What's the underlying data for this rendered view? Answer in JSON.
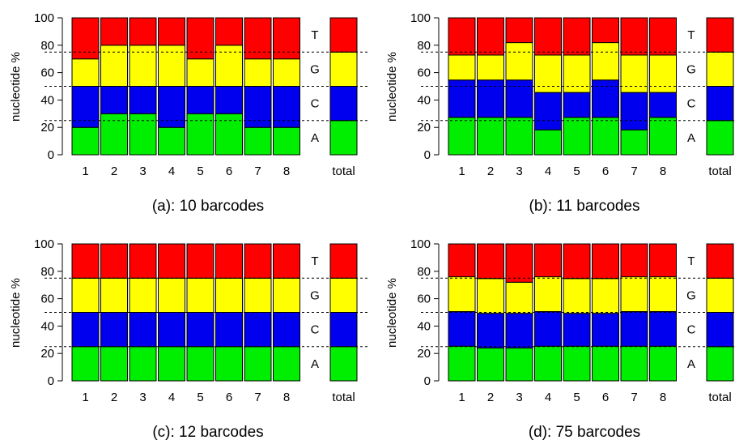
{
  "nucleotides": [
    "A",
    "C",
    "G",
    "T"
  ],
  "colors": {
    "A": "#00ee00",
    "C": "#0000ee",
    "G": "#ffff00",
    "T": "#ff0000"
  },
  "ylabel": "nucleotide %",
  "total_label": "total",
  "chart_data": [
    {
      "type": "bar",
      "title": "(a): 10 barcodes",
      "ylabel": "nucleotide %",
      "ylim": [
        0,
        100
      ],
      "yticks": [
        "0",
        "20",
        "40",
        "60",
        "80",
        "100"
      ],
      "categories": [
        "1",
        "2",
        "3",
        "4",
        "5",
        "6",
        "7",
        "8",
        "total"
      ],
      "stacked": true,
      "series": [
        {
          "name": "A",
          "values": [
            20,
            30,
            30,
            20,
            30,
            30,
            20,
            20,
            25
          ]
        },
        {
          "name": "C",
          "values": [
            30,
            20,
            20,
            30,
            20,
            20,
            30,
            30,
            25
          ]
        },
        {
          "name": "G",
          "values": [
            20,
            30,
            30,
            30,
            20,
            30,
            20,
            20,
            25
          ]
        },
        {
          "name": "T",
          "values": [
            30,
            20,
            20,
            20,
            30,
            20,
            30,
            30,
            25
          ]
        }
      ],
      "reference_lines": [
        25,
        50,
        75
      ]
    },
    {
      "type": "bar",
      "title": "(b): 11 barcodes",
      "ylabel": "nucleotide %",
      "ylim": [
        0,
        100
      ],
      "yticks": [
        "0",
        "20",
        "40",
        "60",
        "80",
        "100"
      ],
      "categories": [
        "1",
        "2",
        "3",
        "4",
        "5",
        "6",
        "7",
        "8",
        "total"
      ],
      "stacked": true,
      "series": [
        {
          "name": "A",
          "values": [
            27.3,
            27.3,
            27.3,
            18.2,
            27.3,
            27.3,
            18.2,
            27.3,
            25
          ]
        },
        {
          "name": "C",
          "values": [
            27.3,
            27.3,
            27.3,
            27.3,
            18.2,
            27.3,
            27.3,
            18.2,
            25
          ]
        },
        {
          "name": "G",
          "values": [
            18.2,
            18.2,
            27.3,
            27.3,
            27.3,
            27.3,
            27.3,
            27.3,
            25
          ]
        },
        {
          "name": "T",
          "values": [
            27.2,
            27.2,
            18.1,
            27.2,
            27.2,
            18.1,
            27.2,
            27.2,
            25
          ]
        }
      ],
      "reference_lines": [
        25,
        50,
        75
      ]
    },
    {
      "type": "bar",
      "title": "(c): 12 barcodes",
      "ylabel": "nucleotide %",
      "ylim": [
        0,
        100
      ],
      "yticks": [
        "0",
        "20",
        "40",
        "60",
        "80",
        "100"
      ],
      "categories": [
        "1",
        "2",
        "3",
        "4",
        "5",
        "6",
        "7",
        "8",
        "total"
      ],
      "stacked": true,
      "series": [
        {
          "name": "A",
          "values": [
            25,
            25,
            25,
            25,
            25,
            25,
            25,
            25,
            25
          ]
        },
        {
          "name": "C",
          "values": [
            25,
            25,
            25,
            25,
            25,
            25,
            25,
            25,
            25
          ]
        },
        {
          "name": "G",
          "values": [
            25,
            25,
            25,
            25,
            25,
            25,
            25,
            25,
            25
          ]
        },
        {
          "name": "T",
          "values": [
            25,
            25,
            25,
            25,
            25,
            25,
            25,
            25,
            25
          ]
        }
      ],
      "reference_lines": [
        25,
        50,
        75
      ]
    },
    {
      "type": "bar",
      "title": "(d): 75 barcodes",
      "ylabel": "nucleotide %",
      "ylim": [
        0,
        100
      ],
      "yticks": [
        "0",
        "20",
        "40",
        "60",
        "80",
        "100"
      ],
      "categories": [
        "1",
        "2",
        "3",
        "4",
        "5",
        "6",
        "7",
        "8",
        "total"
      ],
      "stacked": true,
      "series": [
        {
          "name": "A",
          "values": [
            25.3,
            24,
            24,
            25.3,
            25.3,
            25.3,
            25.3,
            25.3,
            25
          ]
        },
        {
          "name": "C",
          "values": [
            25.3,
            25.3,
            25.3,
            25.3,
            24,
            24,
            25.3,
            25.3,
            25
          ]
        },
        {
          "name": "G",
          "values": [
            25.4,
            25.4,
            22.7,
            25.4,
            25.4,
            25.4,
            25.4,
            25.4,
            25
          ]
        },
        {
          "name": "T",
          "values": [
            24,
            25.3,
            28,
            24,
            25.3,
            25.3,
            24,
            24,
            25
          ]
        }
      ],
      "reference_lines": [
        25,
        50,
        75
      ]
    }
  ]
}
